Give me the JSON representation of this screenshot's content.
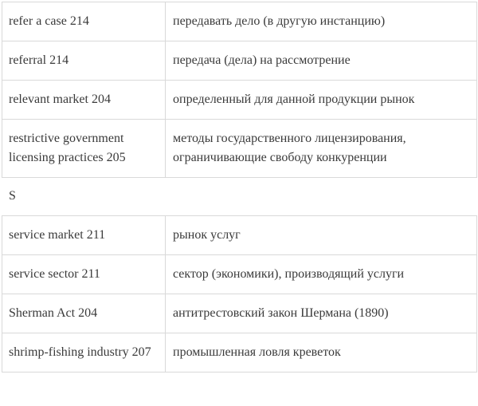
{
  "glossary": {
    "section1": {
      "rows": [
        {
          "term": "refer a case 214",
          "definition": "передавать дело (в другую инстанцию)"
        },
        {
          "term": "referral 214",
          "definition": "передача (дела) на рассмотрение"
        },
        {
          "term": "relevant market 204",
          "definition": "определенный для данной продукции рынок"
        },
        {
          "term": "restrictive government licensing practices 205",
          "definition": "методы государственного лицензирования, ограничивающие свободу конкуренции"
        }
      ]
    },
    "section_letter": "S",
    "section2": {
      "rows": [
        {
          "term": "service market 211",
          "definition": "рынок услуг"
        },
        {
          "term": "service sector 211",
          "definition": "сектор (экономики), производящий услуги"
        },
        {
          "term": "Sherman Act 204",
          "definition": "антитрестовский закон Шермана (1890)"
        },
        {
          "term": "shrimp-fishing industry 207",
          "definition": "промышленная ловля креветок"
        }
      ]
    }
  },
  "colors": {
    "text": "#3a3a3a",
    "border": "#d9d9d9",
    "background": "#ffffff"
  }
}
